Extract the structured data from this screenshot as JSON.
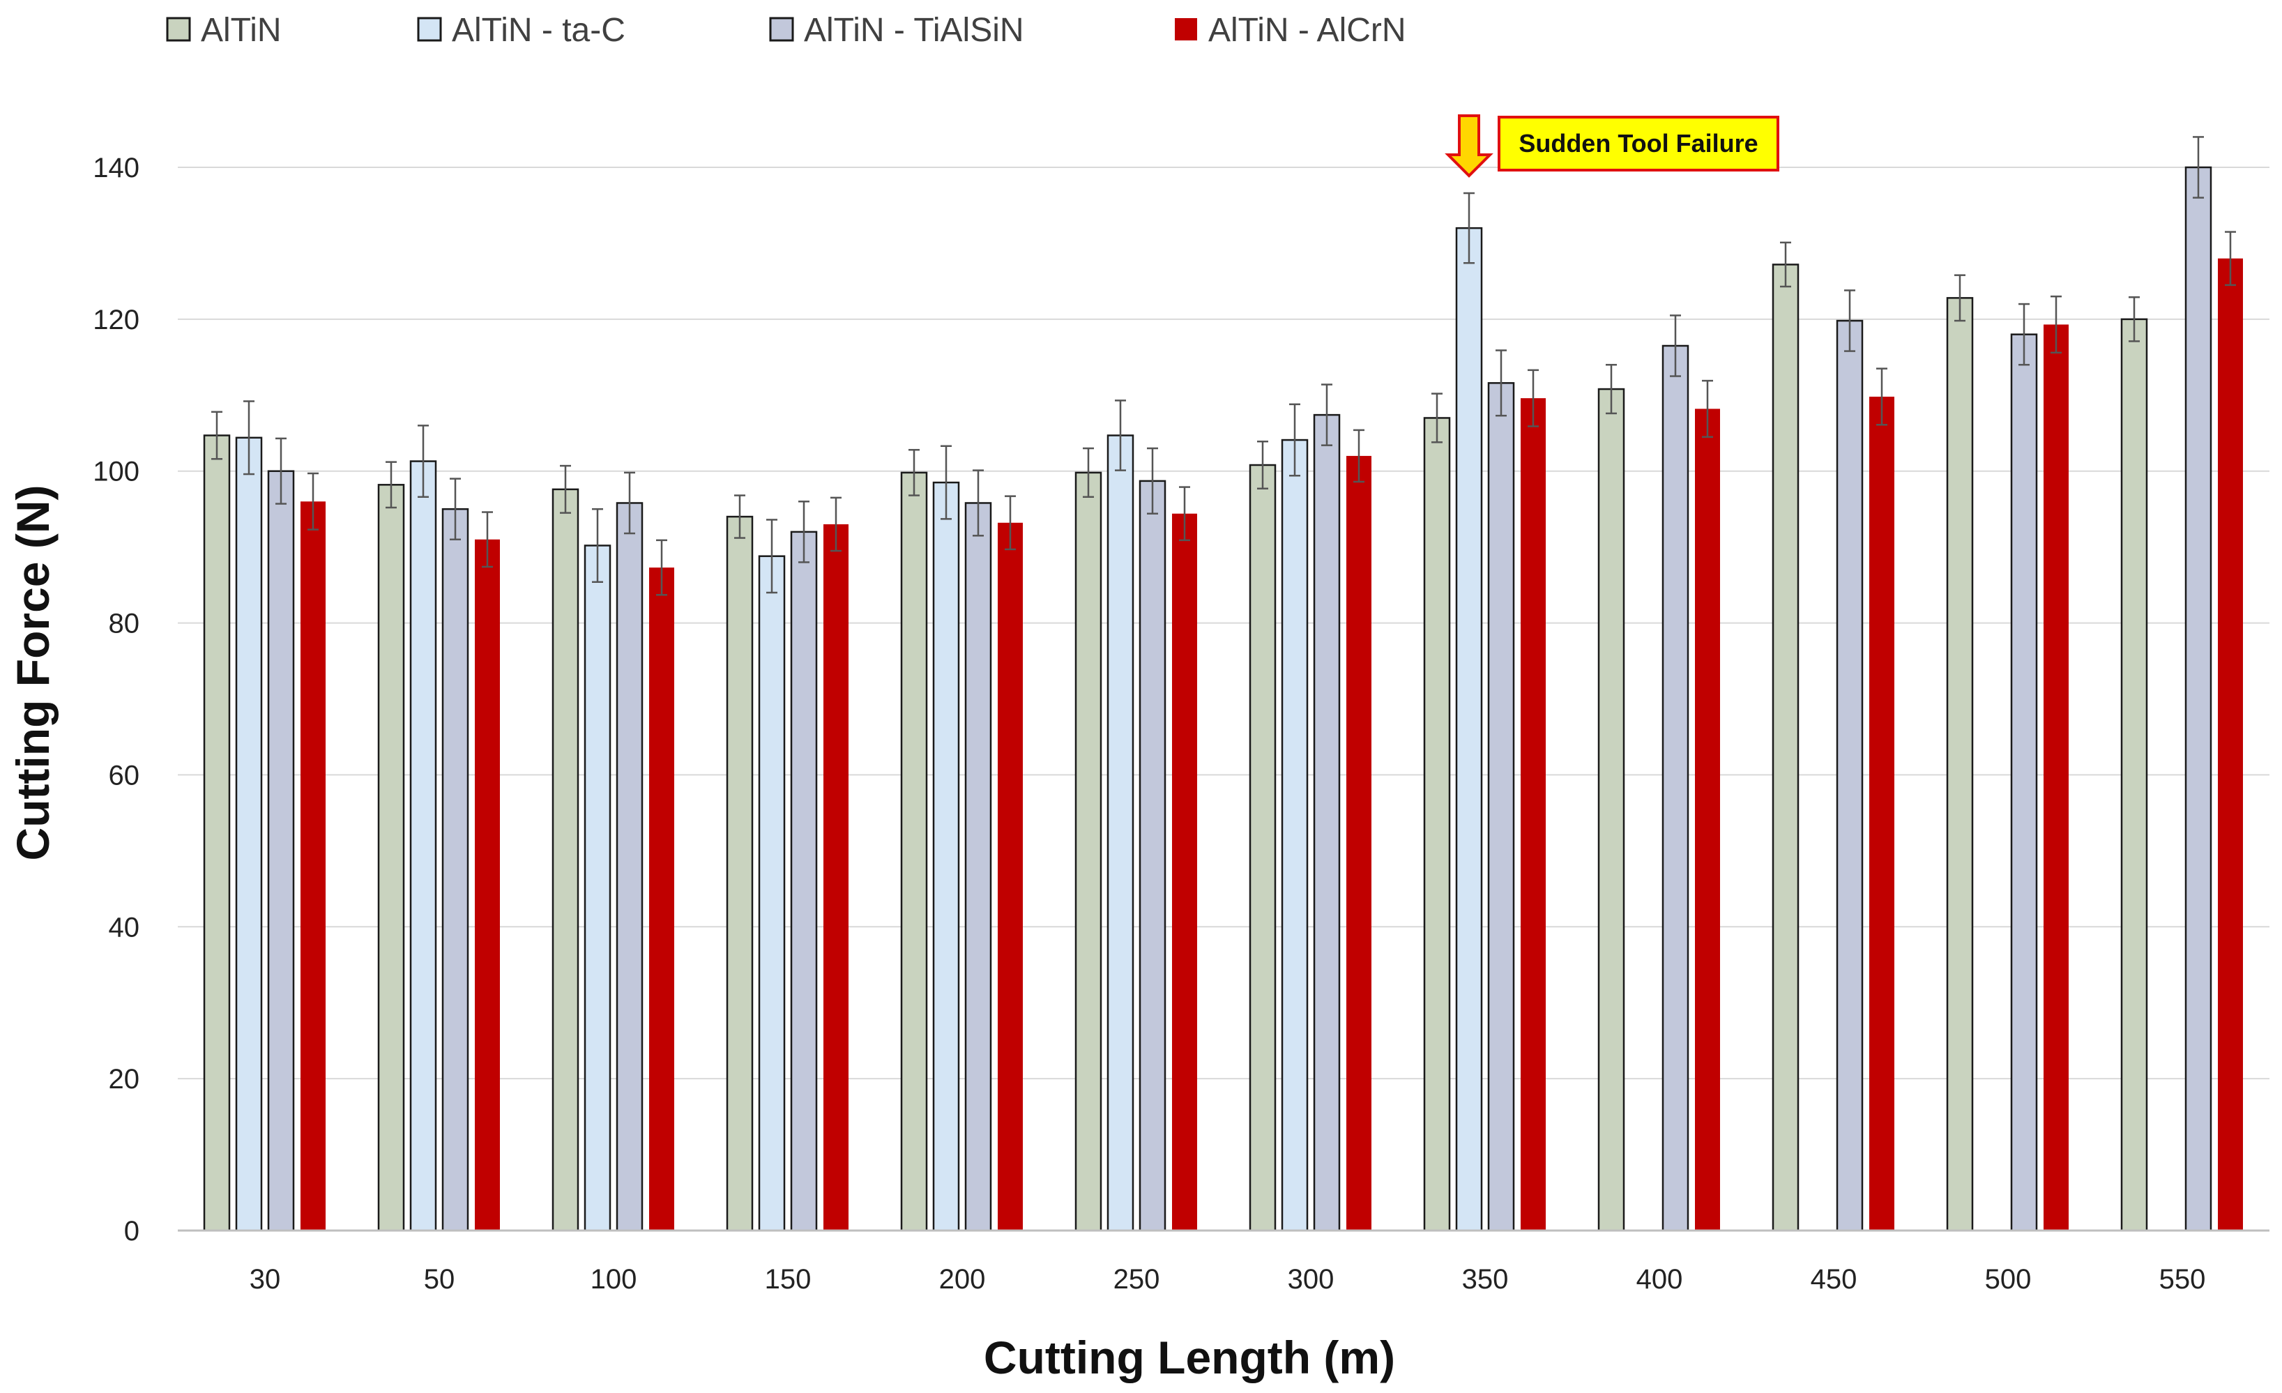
{
  "chart_data": {
    "type": "bar",
    "title": "",
    "xlabel": "Cutting Length (m)",
    "ylabel": "Cutting Force (N)",
    "ylim": [
      0,
      150
    ],
    "yticks": [
      0,
      20,
      40,
      60,
      80,
      100,
      120,
      140
    ],
    "grid": true,
    "legend_position": "top-left",
    "categories": [
      "30",
      "50",
      "100",
      "150",
      "200",
      "250",
      "300",
      "350",
      "400",
      "450",
      "500",
      "550"
    ],
    "series": [
      {
        "name": "AlTiN",
        "color": "#c9d3bf",
        "values": [
          104.7,
          98.2,
          97.6,
          94.0,
          99.8,
          99.8,
          100.8,
          107.0,
          110.8,
          127.2,
          122.8,
          120.0
        ],
        "errors": [
          3.1,
          3.0,
          3.1,
          2.8,
          3.0,
          3.2,
          3.1,
          3.2,
          3.2,
          2.9,
          3.0,
          2.9
        ]
      },
      {
        "name": "AlTiN - ta-C",
        "color": "#d4e5f5",
        "values": [
          104.4,
          101.3,
          90.2,
          88.8,
          98.5,
          104.7,
          104.1,
          132.0,
          null,
          null,
          null,
          null
        ],
        "errors": [
          4.8,
          4.7,
          4.8,
          4.8,
          4.8,
          4.6,
          4.7,
          4.6,
          null,
          null,
          null,
          null
        ]
      },
      {
        "name": "AlTiN - TiAlSiN",
        "color": "#c2c8db",
        "values": [
          100.0,
          95.0,
          95.8,
          92.0,
          95.8,
          98.7,
          107.4,
          111.6,
          116.5,
          119.8,
          118.0,
          140.0
        ],
        "errors": [
          4.3,
          4.0,
          4.0,
          4.0,
          4.3,
          4.3,
          4.0,
          4.3,
          4.0,
          4.0,
          4.0,
          4.0
        ]
      },
      {
        "name": "AlTiN - AlCrN",
        "color": "#c00000",
        "values": [
          96.0,
          91.0,
          87.3,
          93.0,
          93.2,
          94.4,
          102.0,
          109.6,
          108.2,
          109.8,
          119.3,
          128.0
        ],
        "errors": [
          3.7,
          3.6,
          3.6,
          3.5,
          3.5,
          3.5,
          3.4,
          3.7,
          3.7,
          3.7,
          3.7,
          3.5
        ]
      }
    ],
    "annotations": [
      {
        "text": "Sudden Tool Failure",
        "category": "350",
        "series": "AlTiN - ta-C",
        "box_fill": "#ffff00",
        "box_border": "#e01010",
        "arrow_fill": "#ffd700",
        "arrow_border": "#e01010"
      }
    ]
  }
}
